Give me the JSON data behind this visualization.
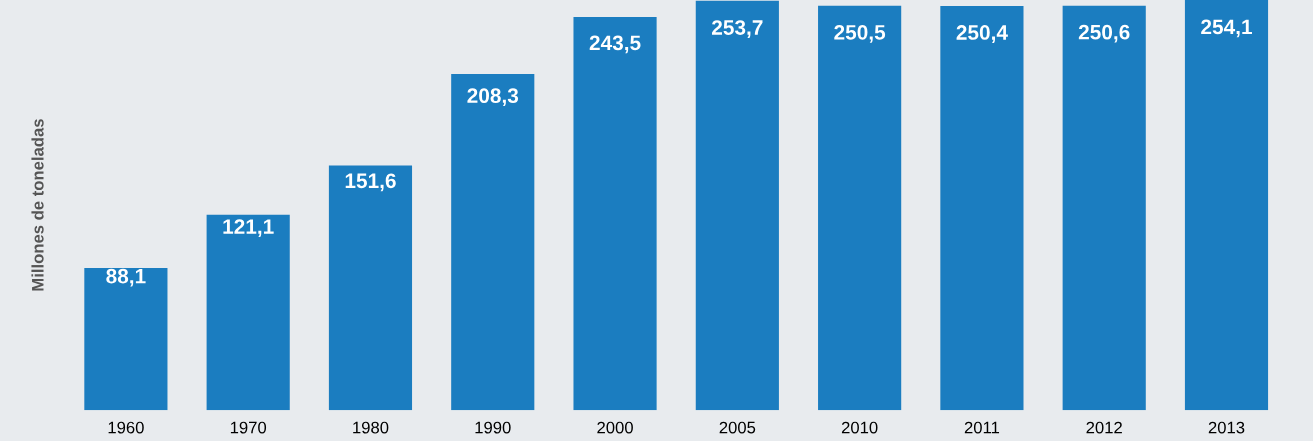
{
  "chart_data": {
    "type": "bar",
    "ylabel": "Millones de toneladas",
    "categories": [
      "1960",
      "1970",
      "1980",
      "1990",
      "2000",
      "2005",
      "2010",
      "2011",
      "2012",
      "2013"
    ],
    "values": [
      88.1,
      121.1,
      151.6,
      208.3,
      243.5,
      253.7,
      250.5,
      250.4,
      250.6,
      254.1
    ],
    "value_labels": [
      "88,1",
      "121,1",
      "151,6",
      "208,3",
      "243,5",
      "253,7",
      "250,5",
      "250,4",
      "250,6",
      "254,1"
    ],
    "color": "#1b7dc0",
    "grid": false,
    "legend": false
  }
}
